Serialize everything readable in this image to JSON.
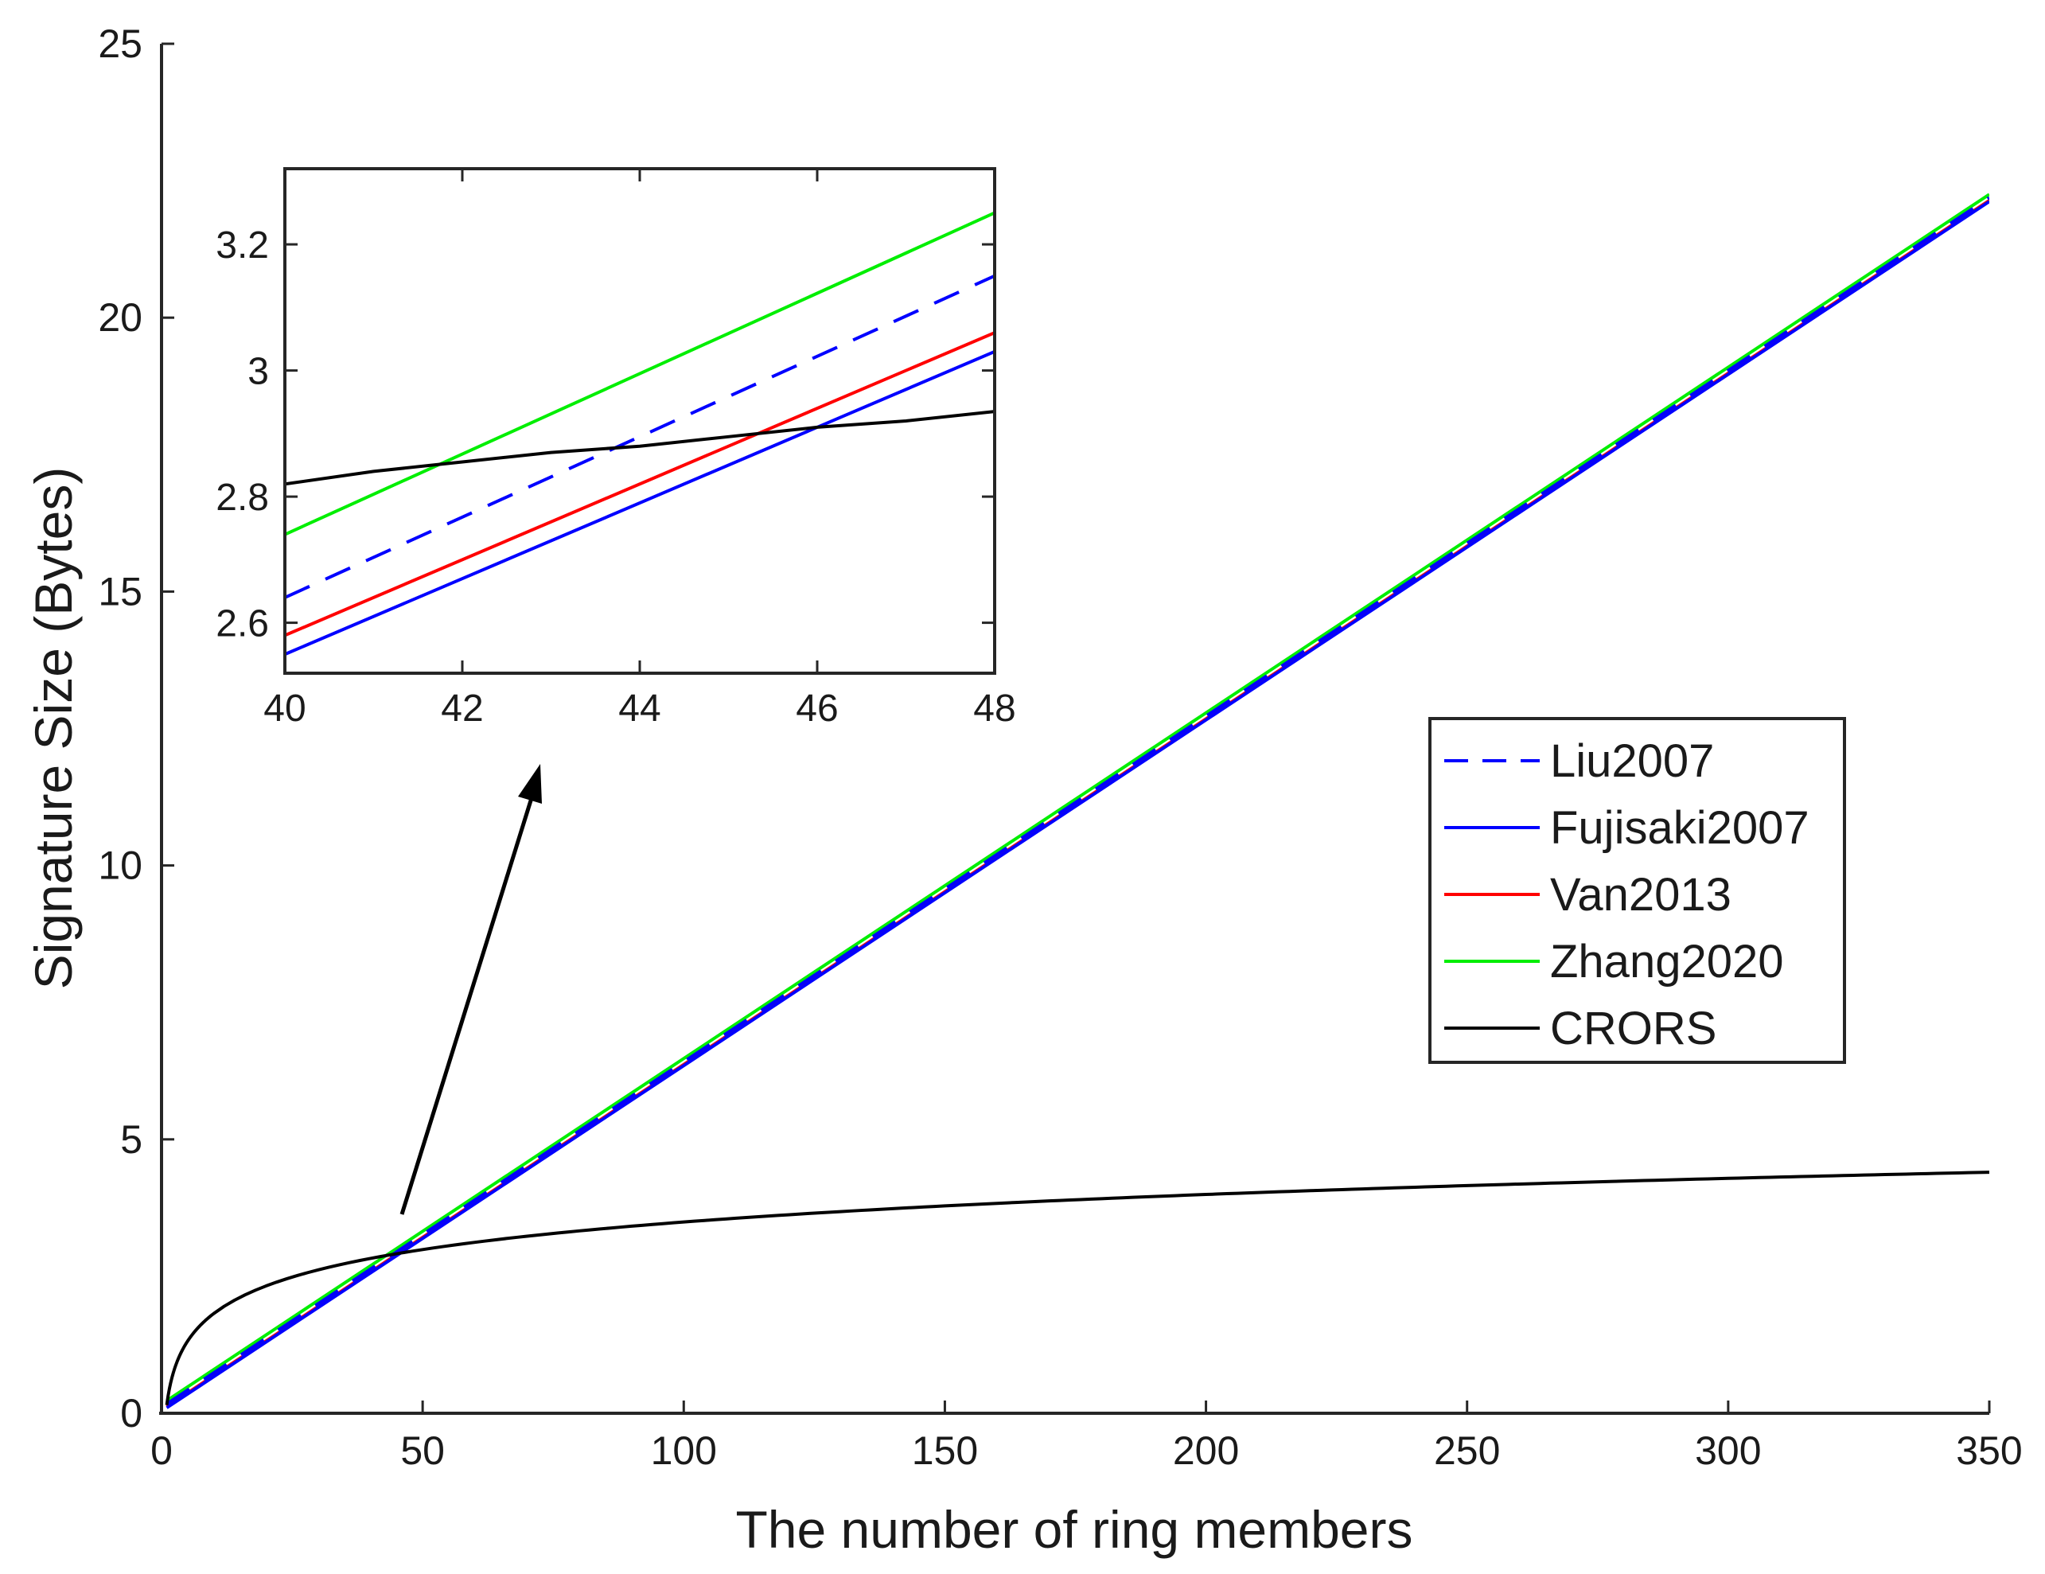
{
  "chart_data": [
    {
      "id": "main",
      "type": "line",
      "title": "",
      "xlabel": "The number of ring members",
      "ylabel": "Signature Size (Bytes)",
      "xlim": [
        0,
        350
      ],
      "ylim": [
        0,
        25
      ],
      "xticks": [
        0,
        50,
        100,
        150,
        200,
        250,
        300,
        350
      ],
      "yticks": [
        0,
        5,
        10,
        15,
        20,
        25
      ],
      "x_tick_labels": [
        "0",
        "50",
        "100",
        "150",
        "200",
        "250",
        "300",
        "350"
      ],
      "y_tick_labels": [
        "0",
        "5",
        "10",
        "15",
        "20",
        "25"
      ],
      "grid": false,
      "legend_position": "center-right",
      "series": [
        {
          "name": "Liu2007",
          "color": "#0000ff",
          "dash": "dashed",
          "model": "linear",
          "points": [
            [
              1,
              0.17
            ],
            [
              350,
              22.19
            ]
          ]
        },
        {
          "name": "Fujisaki2007",
          "color": "#0000ff",
          "dash": "solid",
          "model": "linear",
          "points": [
            [
              1,
              0.1
            ],
            [
              350,
              22.12
            ]
          ]
        },
        {
          "name": "Van2013",
          "color": "#ff0000",
          "dash": "solid",
          "model": "linear",
          "points": [
            [
              1,
              0.12
            ],
            [
              350,
              22.14
            ]
          ]
        },
        {
          "name": "Zhang2020",
          "color": "#00ee00",
          "dash": "solid",
          "model": "linear",
          "points": [
            [
              1,
              0.23
            ],
            [
              350,
              22.25
            ]
          ]
        },
        {
          "name": "CRORS",
          "color": "#000000",
          "dash": "solid",
          "model": "log2",
          "points": [
            [
              1,
              0.15
            ],
            [
              350,
              4.4
            ]
          ]
        }
      ]
    },
    {
      "id": "inset",
      "type": "line",
      "title": "",
      "xlabel": "",
      "ylabel": "",
      "xlim": [
        40,
        48
      ],
      "ylim": [
        2.52,
        3.32
      ],
      "xticks": [
        40,
        42,
        44,
        46,
        48
      ],
      "yticks": [
        2.6,
        2.8,
        3.0,
        3.2
      ],
      "x_tick_labels": [
        "40",
        "42",
        "44",
        "46",
        "48"
      ],
      "y_tick_labels": [
        "2.6",
        "2.8",
        "3",
        "3.2"
      ],
      "grid": false,
      "series": [
        {
          "name": "Liu2007",
          "color": "#0000ff",
          "dash": "dashed",
          "points": [
            [
              40,
              2.64
            ],
            [
              48,
              3.15
            ]
          ]
        },
        {
          "name": "Fujisaki2007",
          "color": "#0000ff",
          "dash": "solid",
          "points": [
            [
              40,
              2.55
            ],
            [
              48,
              3.03
            ]
          ]
        },
        {
          "name": "Van2013",
          "color": "#ff0000",
          "dash": "solid",
          "points": [
            [
              40,
              2.58
            ],
            [
              48,
              3.06
            ]
          ]
        },
        {
          "name": "Zhang2020",
          "color": "#00ee00",
          "dash": "solid",
          "points": [
            [
              40,
              2.74
            ],
            [
              48,
              3.25
            ]
          ]
        },
        {
          "name": "CRORS",
          "color": "#000000",
          "dash": "solid",
          "points": [
            [
              40,
              2.82
            ],
            [
              41,
              2.84
            ],
            [
              42,
              2.855
            ],
            [
              43,
              2.87
            ],
            [
              44,
              2.88
            ],
            [
              45,
              2.895
            ],
            [
              46,
              2.91
            ],
            [
              47,
              2.92
            ],
            [
              48,
              2.935
            ]
          ]
        }
      ]
    }
  ],
  "annotation": {
    "type": "arrow",
    "color": "#000000",
    "from": [
      46,
      3.6
    ],
    "to": [
      72,
      12.2
    ],
    "meaning": "zoom-in pointer to inset"
  }
}
